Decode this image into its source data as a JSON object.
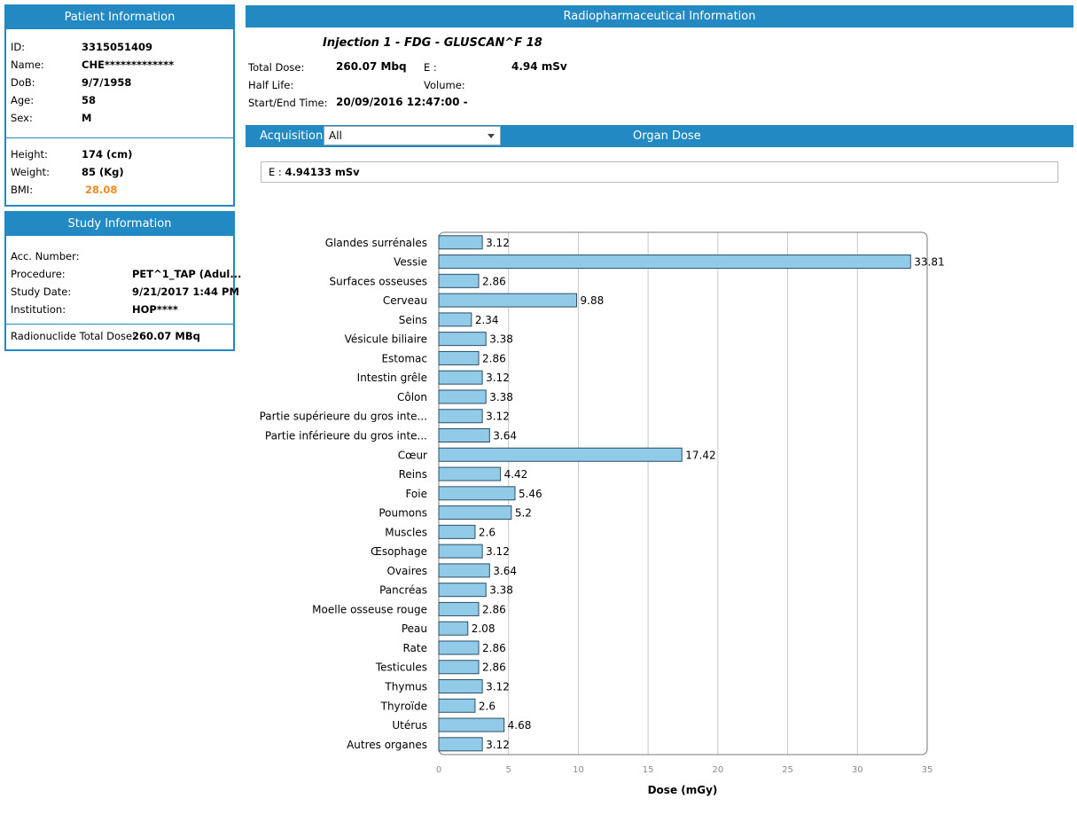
{
  "patient": {
    "title": "Patient Information",
    "id_label": "ID:",
    "id": "3315051409",
    "name_label": "Name:",
    "name": "CHE*************",
    "dob_label": "DoB:",
    "dob": "9/7/1958",
    "age_label": "Age:",
    "age": "58",
    "sex_label": "Sex:",
    "sex": "M",
    "height_label": "Height:",
    "height": "174  (cm)",
    "weight_label": "Weight:",
    "weight": "85  (Kg)",
    "bmi_label": "BMI:",
    "bmi": "28.08",
    "bmi_color": "#f08a24"
  },
  "study": {
    "title": "Study Information",
    "acc_label": "Acc. Number:",
    "acc": "",
    "procedure_label": "Procedure:",
    "procedure": "PET^1_TAP (Adul...",
    "date_label": "Study Date:",
    "date": "9/21/2017 1:44 PM",
    "institution_label": "Institution:",
    "institution": "HOP****",
    "total_dose_label": "Radionuclide Total Dose:",
    "total_dose": "260.07 MBq"
  },
  "radio": {
    "title": "Radiopharmaceutical Information",
    "injection": "Injection 1 - FDG - GLUSCAN^F 18",
    "total_dose_label": "Total Dose:",
    "total_dose": "260.07 Mbq",
    "e_label": "E :",
    "e": "4.94 mSv",
    "half_life_label": "Half Life:",
    "half_life": "",
    "volume_label": "Volume:",
    "volume": "",
    "time_label": "Start/End Time:",
    "time": "20/09/2016 12:47:00 -"
  },
  "acquisition": {
    "label": "Acquisition:",
    "selected": "All",
    "organ_dose_title": "Organ Dose",
    "e_label": "E :",
    "e_value": "4.94133 mSv"
  },
  "colors": {
    "accent": "#2289c3",
    "bar_fill": "#92cbe8",
    "bar_stroke": "#2b4f66"
  },
  "chart_data": {
    "type": "bar",
    "orientation": "horizontal",
    "categories": [
      "Glandes surrénales",
      "Vessie",
      "Surfaces osseuses",
      "Cerveau",
      "Seins",
      "Vésicule biliaire",
      "Estomac",
      "Intestin grêle",
      "Côlon",
      "Partie supérieure du gros inte...",
      "Partie inférieure du gros inte...",
      "Cœur",
      "Reins",
      "Foie",
      "Poumons",
      "Muscles",
      "Œsophage",
      "Ovaires",
      "Pancréas",
      "Moelle osseuse rouge",
      "Peau",
      "Rate",
      "Testicules",
      "Thymus",
      "Thyroïde",
      "Utérus",
      "Autres organes"
    ],
    "values": [
      3.12,
      33.81,
      2.86,
      9.88,
      2.34,
      3.38,
      2.86,
      3.12,
      3.38,
      3.12,
      3.64,
      17.42,
      4.42,
      5.46,
      5.2,
      2.6,
      3.12,
      3.64,
      3.38,
      2.86,
      2.08,
      2.86,
      2.86,
      3.12,
      2.6,
      4.68,
      3.12
    ],
    "value_labels": [
      "3.12",
      "33.81",
      "2.86",
      "9.88",
      "2.34",
      "3.38",
      "2.86",
      "3.12",
      "3.38",
      "3.12",
      "3.64",
      "17.42",
      "4.42",
      "5.46",
      "5.2",
      "2.6",
      "3.12",
      "3.64",
      "3.38",
      "2.86",
      "2.08",
      "2.86",
      "2.86",
      "3.12",
      "2.6",
      "4.68",
      "3.12"
    ],
    "xlabel": "Dose (mGy)",
    "xlim": [
      0,
      35
    ],
    "xticks": [
      0,
      5,
      10,
      15,
      20,
      25,
      30,
      35
    ],
    "grid": true
  }
}
